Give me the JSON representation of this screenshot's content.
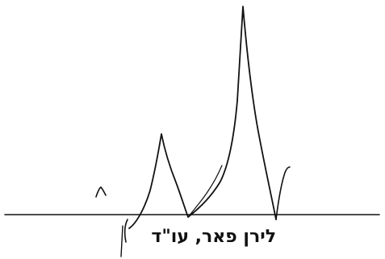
{
  "document": {
    "type": "signature-with-stamp",
    "ink_color": "#111111",
    "background_color": "#ffffff",
    "signature": {
      "kind": "handwritten"
    },
    "name_line": {
      "text": "לירן פאר, עו\"ד",
      "direction": "rtl"
    }
  }
}
